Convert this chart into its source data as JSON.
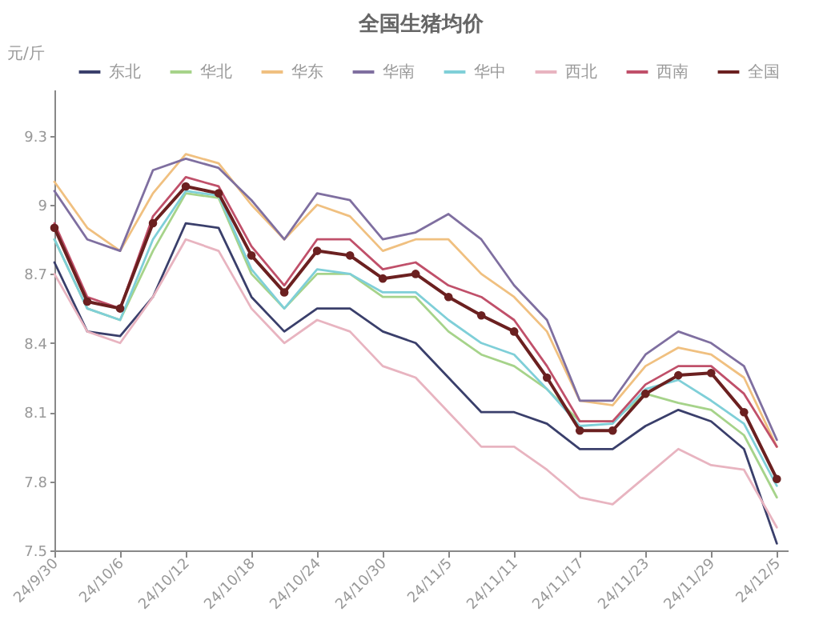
{
  "chart_data": {
    "type": "line",
    "title": "全国生猪均价",
    "ylabel": "元/斤",
    "x": [
      "--09-30",
      "--10-03",
      "--10-06",
      "--10-09",
      "--10-12",
      "--10-15",
      "--10-18",
      "--10-21",
      "--10-24",
      "--10-27",
      "--10-30",
      "--11-02",
      "--11-05",
      "--11-08",
      "--11-11",
      "--11-14",
      "--11-17",
      "--11-20",
      "--11-23",
      "--11-26",
      "--11-29",
      "--12-02",
      "--12-05"
    ],
    "series": [
      {
        "name": "东北",
        "color": "#3a3f6b",
        "values": [
          8.75,
          8.45,
          8.43,
          8.6,
          8.92,
          8.9,
          8.6,
          8.45,
          8.55,
          8.55,
          8.45,
          8.4,
          8.25,
          8.1,
          8.1,
          8.05,
          7.94,
          7.94,
          8.04,
          8.11,
          8.06,
          7.94,
          7.53
        ]
      },
      {
        "name": "华北",
        "color": "#a6d38a",
        "values": [
          8.85,
          8.55,
          8.5,
          8.8,
          9.05,
          9.03,
          8.7,
          8.55,
          8.7,
          8.7,
          8.6,
          8.6,
          8.45,
          8.35,
          8.3,
          8.2,
          8.06,
          8.06,
          8.18,
          8.14,
          8.11,
          8.0,
          7.73
        ]
      },
      {
        "name": "华东",
        "color": "#f0c080",
        "values": [
          9.1,
          8.9,
          8.8,
          9.05,
          9.22,
          9.18,
          9.0,
          8.85,
          9.0,
          8.95,
          8.8,
          8.85,
          8.85,
          8.7,
          8.6,
          8.45,
          8.15,
          8.13,
          8.3,
          8.38,
          8.35,
          8.25,
          7.95
        ]
      },
      {
        "name": "华南",
        "color": "#7f6fa0",
        "values": [
          9.06,
          8.85,
          8.8,
          9.15,
          9.2,
          9.16,
          9.02,
          8.85,
          9.05,
          9.02,
          8.85,
          8.88,
          8.96,
          8.85,
          8.65,
          8.5,
          8.15,
          8.15,
          8.35,
          8.45,
          8.4,
          8.3,
          7.98
        ]
      },
      {
        "name": "华中",
        "color": "#7fcfd8",
        "values": [
          8.85,
          8.55,
          8.5,
          8.85,
          9.06,
          9.04,
          8.72,
          8.55,
          8.72,
          8.7,
          8.62,
          8.62,
          8.5,
          8.4,
          8.35,
          8.2,
          8.04,
          8.05,
          8.2,
          8.24,
          8.15,
          8.05,
          7.78
        ]
      },
      {
        "name": "西北",
        "color": "#e8b4c0",
        "values": [
          8.7,
          8.45,
          8.4,
          8.6,
          8.85,
          8.8,
          8.55,
          8.4,
          8.5,
          8.45,
          8.3,
          8.25,
          8.1,
          7.95,
          7.95,
          7.85,
          7.73,
          7.7,
          7.82,
          7.94,
          7.87,
          7.85,
          7.6
        ]
      },
      {
        "name": "西南",
        "color": "#c0506a",
        "values": [
          8.92,
          8.6,
          8.55,
          8.95,
          9.12,
          9.08,
          8.82,
          8.65,
          8.85,
          8.85,
          8.72,
          8.75,
          8.65,
          8.6,
          8.5,
          8.3,
          8.06,
          8.06,
          8.22,
          8.3,
          8.3,
          8.18,
          7.95
        ]
      },
      {
        "name": "全国",
        "color": "#6b2020",
        "marker": "circle",
        "values": [
          8.9,
          8.58,
          8.55,
          8.92,
          9.08,
          9.05,
          8.78,
          8.62,
          8.8,
          8.78,
          8.68,
          8.7,
          8.6,
          8.52,
          8.45,
          8.25,
          8.02,
          8.02,
          8.18,
          8.26,
          8.27,
          8.1,
          7.81
        ]
      }
    ],
    "xlim": [
      "--09-30",
      "--12-06"
    ],
    "xticks": [
      {
        "value": "--09-30",
        "label": "24/9/30"
      },
      {
        "value": "--10-06",
        "label": "24/10/6"
      },
      {
        "value": "--10-12",
        "label": "24/10/12"
      },
      {
        "value": "--10-18",
        "label": "24/10/18"
      },
      {
        "value": "--10-24",
        "label": "24/10/24"
      },
      {
        "value": "--10-30",
        "label": "24/10/30"
      },
      {
        "value": "--11-05",
        "label": "24/11/5"
      },
      {
        "value": "--11-11",
        "label": "24/11/11"
      },
      {
        "value": "--11-17",
        "label": "24/11/17"
      },
      {
        "value": "--11-23",
        "label": "24/11/23"
      },
      {
        "value": "--11-29",
        "label": "24/11/29"
      },
      {
        "value": "--12-05",
        "label": "24/12/5"
      }
    ],
    "ylim": [
      7.5,
      9.5
    ],
    "yticks": [
      7.5,
      7.8,
      8.1,
      8.4,
      8.7,
      9,
      9.3
    ],
    "grid": false,
    "legend": "top",
    "line_style": "solid"
  }
}
